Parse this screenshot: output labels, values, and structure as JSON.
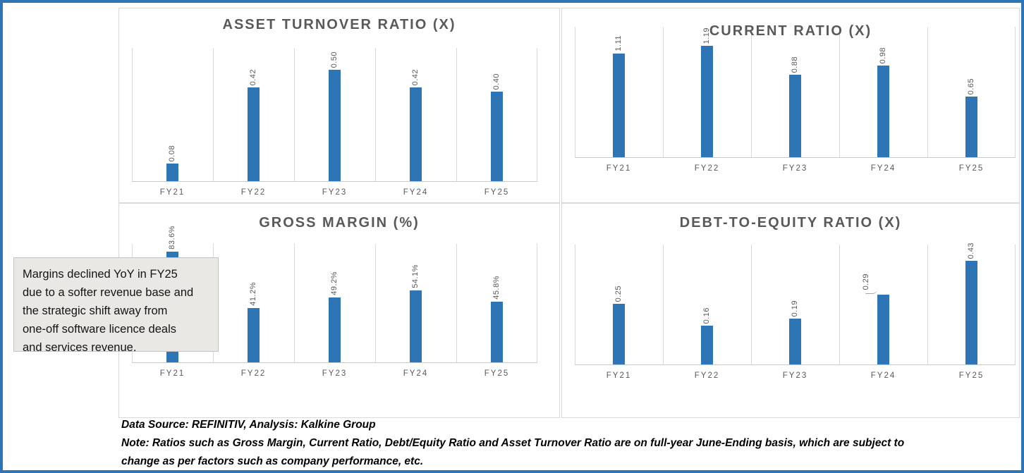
{
  "colors": {
    "bar": "#2E75B6",
    "frame": "#2E75B6",
    "grid": "#D9D9D9",
    "axis_text": "#595959",
    "title_text": "#595959",
    "annotation_bg": "#E9E8E5",
    "annotation_border": "#C3C2BF",
    "footer_text": "#000000"
  },
  "chart_data": [
    {
      "type": "bar",
      "title": "ASSET TURNOVER RATIO (X)",
      "categories": [
        "FY21",
        "FY22",
        "FY23",
        "FY24",
        "FY25"
      ],
      "values": [
        0.08,
        0.42,
        0.5,
        0.42,
        0.4
      ],
      "labels": [
        "0.08",
        "0.42",
        "0.50",
        "0.42",
        "0.40"
      ],
      "xlabel": "",
      "ylabel": "",
      "ylim": [
        0,
        0.6
      ],
      "value_axis_visible": false,
      "grid": "vertical category boundary lines only",
      "legend": "none",
      "data_label_rotation": "vertical, reads bottom-to-top"
    },
    {
      "type": "bar",
      "title": "CURRENT RATIO (X)",
      "categories": [
        "FY21",
        "FY22",
        "FY23",
        "FY24",
        "FY25"
      ],
      "values": [
        1.11,
        1.19,
        0.88,
        0.98,
        0.65
      ],
      "labels": [
        "1.11",
        "1.19",
        "0.88",
        "0.98",
        "0.65"
      ],
      "xlabel": "",
      "ylabel": "",
      "ylim": [
        0,
        1.4
      ],
      "value_axis_visible": false,
      "grid": "vertical category boundary lines only",
      "legend": "none",
      "data_label_rotation": "vertical, reads bottom-to-top"
    },
    {
      "type": "bar",
      "title": "GROSS MARGIN (%)",
      "categories": [
        "FY21",
        "FY22",
        "FY23",
        "FY24",
        "FY25"
      ],
      "values": [
        83.6,
        41.2,
        49.2,
        54.1,
        45.8
      ],
      "labels": [
        "83.6%",
        "41.2%",
        "49.2%",
        "54.1%",
        "45.8%"
      ],
      "xlabel": "",
      "ylabel": "",
      "ylim": [
        0,
        90
      ],
      "value_axis_visible": false,
      "grid": "vertical category boundary lines only",
      "legend": "none",
      "data_label_rotation": "vertical, reads bottom-to-top"
    },
    {
      "type": "bar",
      "title": "DEBT-TO-EQUITY RATIO (X)",
      "categories": [
        "FY21",
        "FY22",
        "FY23",
        "FY24",
        "FY25"
      ],
      "values": [
        0.25,
        0.16,
        0.19,
        0.29,
        0.43
      ],
      "labels": [
        "0.25",
        "0.16",
        "0.19",
        "0.29",
        "0.43"
      ],
      "xlabel": "",
      "ylabel": "",
      "ylim": [
        0,
        0.5
      ],
      "value_axis_visible": false,
      "grid": "vertical category boundary lines only",
      "legend": "none",
      "data_label_rotation": "vertical, reads bottom-to-top",
      "callout_index": 3,
      "callout_note": "FY24 label 0.29 has a leader line to its bar"
    }
  ],
  "annotation": {
    "text": "Margins declined YoY in FY25 due to a softer revenue base and the strategic shift away from one-off software licence deals and services revenue.",
    "lines": [
      "Margins declined YoY in FY25",
      "due to a softer revenue base and",
      "the strategic shift away from",
      "one-off software licence deals",
      "and services revenue."
    ]
  },
  "footer": {
    "source": "Data Source: REFINITIV, Analysis: Kalkine Group",
    "note_line1": "Note: Ratios such as Gross Margin, Current Ratio, Debt/Equity Ratio and Asset Turnover Ratio are on full-year June-Ending basis, which are subject to",
    "note_line2": "change as per factors such as company performance, etc."
  }
}
